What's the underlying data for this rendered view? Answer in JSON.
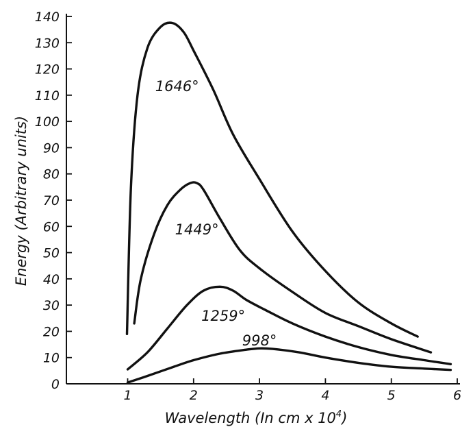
{
  "chart_data": {
    "type": "line",
    "xlabel": "Wavelength (In cm x 10",
    "xlabel_sup": "4",
    "xlabel_end": ")",
    "ylabel": "Energy (Arbitrary units)",
    "xlim": [
      0,
      6.1
    ],
    "ylim": [
      0,
      140
    ],
    "x_ticks": [
      1,
      2,
      3,
      4,
      5,
      6
    ],
    "x_tick_labels": [
      "1",
      "2",
      "3",
      "4",
      "5",
      "6"
    ],
    "y_ticks": [
      0,
      10,
      20,
      30,
      40,
      50,
      60,
      70,
      80,
      90,
      100,
      110,
      120,
      130,
      140
    ],
    "y_tick_labels": [
      "0",
      "10",
      "20",
      "30",
      "40",
      "50",
      "60",
      "70",
      "80",
      "90",
      "100",
      "110",
      "120",
      "130",
      "140"
    ],
    "grid": false,
    "legend": "none",
    "series": [
      {
        "name": "1646°",
        "x": [
          0.99,
          1.05,
          1.15,
          1.3,
          1.5,
          1.68,
          1.85,
          2.0,
          2.3,
          2.6,
          3.0,
          3.5,
          4.0,
          4.5,
          5.0,
          5.4
        ],
        "y": [
          19,
          75,
          110,
          128,
          136,
          137.5,
          134,
          127,
          112,
          95,
          78,
          58,
          43,
          31,
          23,
          18
        ]
      },
      {
        "name": "1449°",
        "x": [
          1.1,
          1.2,
          1.4,
          1.6,
          1.8,
          1.95,
          2.05,
          2.15,
          2.4,
          2.7,
          3.0,
          3.5,
          4.0,
          4.5,
          5.0,
          5.6
        ],
        "y": [
          23,
          40,
          57,
          68,
          74,
          76.5,
          76.5,
          74,
          63,
          51,
          44,
          35,
          27,
          22,
          17,
          12
        ]
      },
      {
        "name": "1259°",
        "x": [
          1.0,
          1.3,
          1.6,
          1.9,
          2.15,
          2.4,
          2.6,
          2.8,
          3.1,
          3.5,
          4.0,
          4.5,
          5.0,
          5.5,
          5.9
        ],
        "y": [
          5.5,
          12,
          21,
          30,
          35.5,
          37,
          35.5,
          32,
          28,
          23,
          18,
          14,
          11,
          9,
          7.5
        ]
      },
      {
        "name": "998°",
        "x": [
          1.0,
          1.3,
          1.7,
          2.0,
          2.4,
          2.8,
          3.0,
          3.2,
          3.6,
          4.0,
          4.5,
          5.0,
          5.5,
          5.9
        ],
        "y": [
          0.5,
          3,
          6.5,
          9,
          11.5,
          13,
          13.5,
          13.3,
          12,
          10,
          8,
          6.5,
          5.8,
          5.3
        ]
      }
    ]
  }
}
